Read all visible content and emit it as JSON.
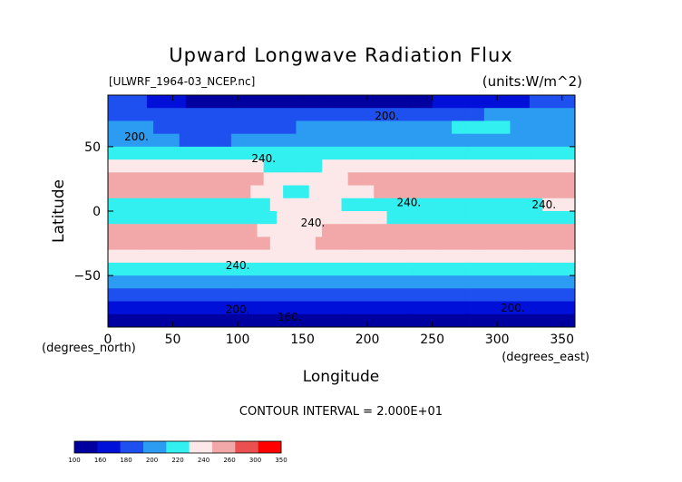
{
  "chart_data": {
    "type": "heatmap",
    "title": "Upward Longwave Radiation Flux",
    "file_label": "[ULWRF_1964-03_NCEP.nc]",
    "units_label": "(units:W/m^2)",
    "xlabel": "Longitude",
    "ylabel": "Latitude",
    "x_unit_label": "(degrees_east)",
    "y_unit_label": "(degrees_north)",
    "xlim": [
      0,
      360
    ],
    "ylim": [
      -90,
      90
    ],
    "x_ticks": [
      0,
      50,
      100,
      150,
      200,
      250,
      300,
      350
    ],
    "y_ticks": [
      -50,
      0,
      50
    ],
    "contour_interval_label": "CONTOUR INTERVAL = 2.000E+01",
    "contour_labels": [
      {
        "text": "200.",
        "lon": 22,
        "lat": 55
      },
      {
        "text": "200.",
        "lon": 215,
        "lat": 71
      },
      {
        "text": "240.",
        "lon": 120,
        "lat": 38
      },
      {
        "text": "240.",
        "lon": 232,
        "lat": 4
      },
      {
        "text": "240.",
        "lon": 158,
        "lat": -12
      },
      {
        "text": "240.",
        "lon": 336,
        "lat": 2
      },
      {
        "text": "240.",
        "lon": 100,
        "lat": -45
      },
      {
        "text": "200.",
        "lon": 100,
        "lat": -79
      },
      {
        "text": "200.",
        "lon": 312,
        "lat": -78
      },
      {
        "text": "160.",
        "lon": 140,
        "lat": -85
      }
    ],
    "levels": [
      100,
      160,
      180,
      200,
      220,
      240,
      260,
      300,
      350
    ],
    "level_colors": [
      "#0000a0",
      "#0010d8",
      "#1e50f0",
      "#2c9cf2",
      "#33f0f0",
      "#fce8e8",
      "#f2a8a8",
      "#ea5050",
      "#ff0000"
    ],
    "lat_rows": [
      {
        "lat": 85,
        "values": [
          200,
          150,
          145,
          150,
          170,
          190
        ]
      },
      {
        "lat": 75,
        "values": [
          190,
          180,
          185,
          195,
          200,
          205
        ]
      },
      {
        "lat": 65,
        "values": [
          210,
          190,
          200,
          210,
          225,
          210
        ]
      },
      {
        "lat": 55,
        "values": [
          215,
          195,
          210,
          205,
          215,
          210
        ]
      },
      {
        "lat": 45,
        "values": [
          230,
          220,
          225,
          228,
          232,
          235
        ]
      },
      {
        "lat": 35,
        "values": [
          248,
          250,
          235,
          252,
          250,
          258
        ]
      },
      {
        "lat": 25,
        "values": [
          270,
          290,
          245,
          270,
          280,
          295
        ]
      },
      {
        "lat": 15,
        "values": [
          275,
          285,
          235,
          265,
          280,
          300
        ]
      },
      {
        "lat": 5,
        "values": [
          240,
          225,
          245,
          235,
          220,
          250
        ]
      },
      {
        "lat": -5,
        "values": [
          230,
          220,
          245,
          240,
          225,
          230
        ]
      },
      {
        "lat": -15,
        "values": [
          270,
          275,
          250,
          285,
          270,
          265
        ]
      },
      {
        "lat": -25,
        "values": [
          265,
          285,
          250,
          295,
          260,
          270
        ]
      },
      {
        "lat": -35,
        "values": [
          245,
          250,
          240,
          255,
          245,
          248
        ]
      },
      {
        "lat": -45,
        "values": [
          225,
          222,
          222,
          224,
          222,
          225
        ]
      },
      {
        "lat": -55,
        "values": [
          212,
          210,
          210,
          212,
          210,
          212
        ]
      },
      {
        "lat": -65,
        "values": [
          195,
          198,
          200,
          198,
          195,
          198
        ]
      },
      {
        "lat": -75,
        "values": [
          170,
          175,
          180,
          178,
          172,
          175
        ]
      },
      {
        "lat": -85,
        "values": [
          145,
          150,
          150,
          148,
          145,
          150
        ]
      }
    ],
    "row_lon_nodes": [
      0,
      72,
      144,
      216,
      288,
      360
    ]
  }
}
